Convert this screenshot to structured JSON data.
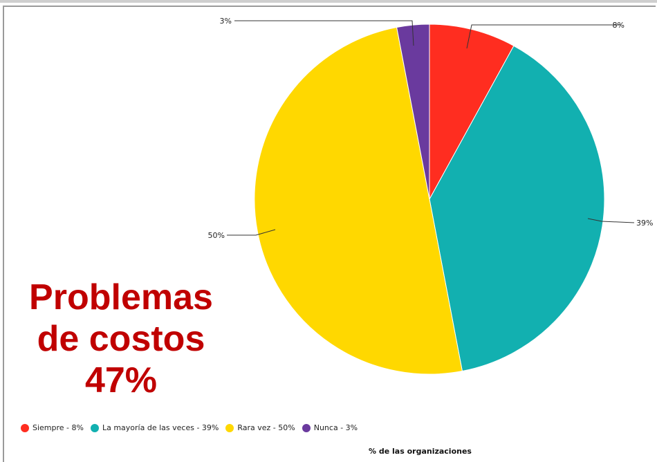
{
  "chart_data": {
    "type": "pie",
    "start_angle_deg": 0,
    "direction": "clockwise",
    "slices": [
      {
        "name": "Siempre",
        "value": 8,
        "label": "8%",
        "color": "#ff2d20",
        "legend": "Siempre - 8%"
      },
      {
        "name": "La mayoría de las veces",
        "value": 39,
        "label": "39%",
        "color": "#12b0b0",
        "legend": "La mayoría de las veces - 39%"
      },
      {
        "name": "Rara vez",
        "value": 50,
        "label": "50%",
        "color": "#ffd800",
        "legend": "Rara vez - 50%"
      },
      {
        "name": "Nunca",
        "value": 3,
        "label": "3%",
        "color": "#6a3a9e",
        "legend": "Nunca - 3%"
      }
    ],
    "xlabel": "% de las organizaciones",
    "legend_position": "bottom-left"
  },
  "overlay": {
    "line1": "Problemas",
    "line2": "de costos",
    "line3": "47%",
    "color": "#c00000"
  }
}
